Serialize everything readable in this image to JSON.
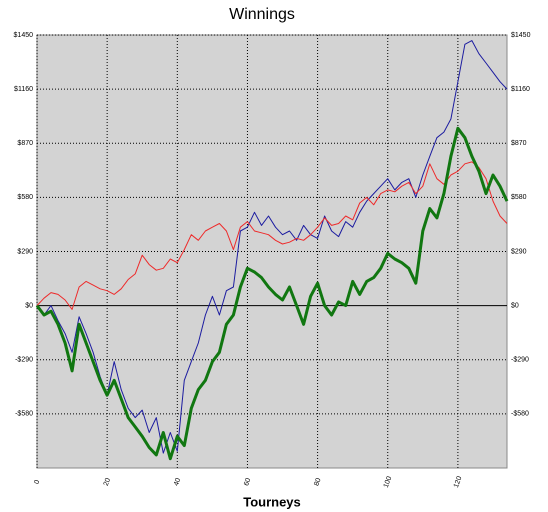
{
  "chart_data": {
    "type": "line",
    "title": "Winnings",
    "x_label": "Tourneys",
    "x": [
      0,
      2,
      4,
      6,
      8,
      10,
      12,
      14,
      16,
      18,
      20,
      22,
      24,
      26,
      28,
      30,
      32,
      34,
      36,
      38,
      40,
      42,
      44,
      46,
      48,
      50,
      52,
      54,
      56,
      58,
      60,
      62,
      64,
      66,
      68,
      70,
      72,
      74,
      76,
      78,
      80,
      82,
      84,
      86,
      88,
      90,
      92,
      94,
      96,
      98,
      100,
      102,
      104,
      106,
      108,
      110,
      112,
      114,
      116,
      118,
      120,
      122,
      124,
      126,
      128,
      130,
      132,
      134
    ],
    "series": [
      {
        "color": "#1c1ca0",
        "width": 1,
        "values": [
          0,
          -50,
          0,
          -80,
          -150,
          -250,
          -60,
          -150,
          -250,
          -380,
          -480,
          -300,
          -450,
          -550,
          -600,
          -560,
          -680,
          -600,
          -790,
          -680,
          -780,
          -400,
          -300,
          -200,
          -50,
          50,
          -50,
          80,
          100,
          400,
          420,
          500,
          430,
          480,
          420,
          380,
          400,
          350,
          430,
          380,
          360,
          480,
          400,
          370,
          450,
          420,
          500,
          560,
          600,
          640,
          680,
          620,
          660,
          680,
          580,
          700,
          800,
          900,
          930,
          1000,
          1200,
          1400,
          1420,
          1350,
          1300,
          1250,
          1200,
          1160
        ]
      },
      {
        "color": "#ee2a2a",
        "width": 1,
        "values": [
          0,
          40,
          70,
          60,
          30,
          -20,
          100,
          130,
          110,
          90,
          80,
          60,
          90,
          140,
          170,
          270,
          220,
          190,
          200,
          250,
          230,
          300,
          380,
          350,
          400,
          420,
          440,
          400,
          300,
          420,
          450,
          400,
          390,
          380,
          350,
          330,
          340,
          360,
          350,
          380,
          420,
          470,
          430,
          440,
          480,
          460,
          550,
          580,
          540,
          600,
          620,
          610,
          640,
          660,
          600,
          640,
          760,
          680,
          650,
          700,
          720,
          760,
          770,
          740,
          680,
          560,
          480,
          440
        ]
      },
      {
        "color": "#117711",
        "width": 3,
        "values": [
          0,
          -50,
          -30,
          -100,
          -200,
          -350,
          -100,
          -200,
          -300,
          -400,
          -480,
          -400,
          -500,
          -600,
          -650,
          -700,
          -760,
          -800,
          -680,
          -820,
          -700,
          -750,
          -550,
          -450,
          -400,
          -300,
          -250,
          -100,
          -50,
          100,
          200,
          180,
          150,
          100,
          60,
          30,
          100,
          0,
          -100,
          50,
          120,
          0,
          -50,
          20,
          0,
          130,
          60,
          130,
          150,
          200,
          280,
          250,
          230,
          200,
          120,
          400,
          520,
          470,
          600,
          800,
          950,
          900,
          800,
          720,
          600,
          700,
          640,
          560
        ]
      }
    ],
    "xlim": [
      0,
      134
    ],
    "xticks": [
      0,
      20,
      40,
      60,
      80,
      100,
      120
    ],
    "ylim": [
      -870,
      1450
    ],
    "yticks": [
      {
        "value": -580,
        "label": "-$580"
      },
      {
        "value": -290,
        "label": "-$290"
      },
      {
        "value": 0,
        "label": "$0"
      },
      {
        "value": 290,
        "label": "$290"
      },
      {
        "value": 580,
        "label": "$580"
      },
      {
        "value": 870,
        "label": "$870"
      },
      {
        "value": 1160,
        "label": "$1160"
      },
      {
        "value": 1450,
        "label": "$1450"
      }
    ],
    "grid": true
  }
}
